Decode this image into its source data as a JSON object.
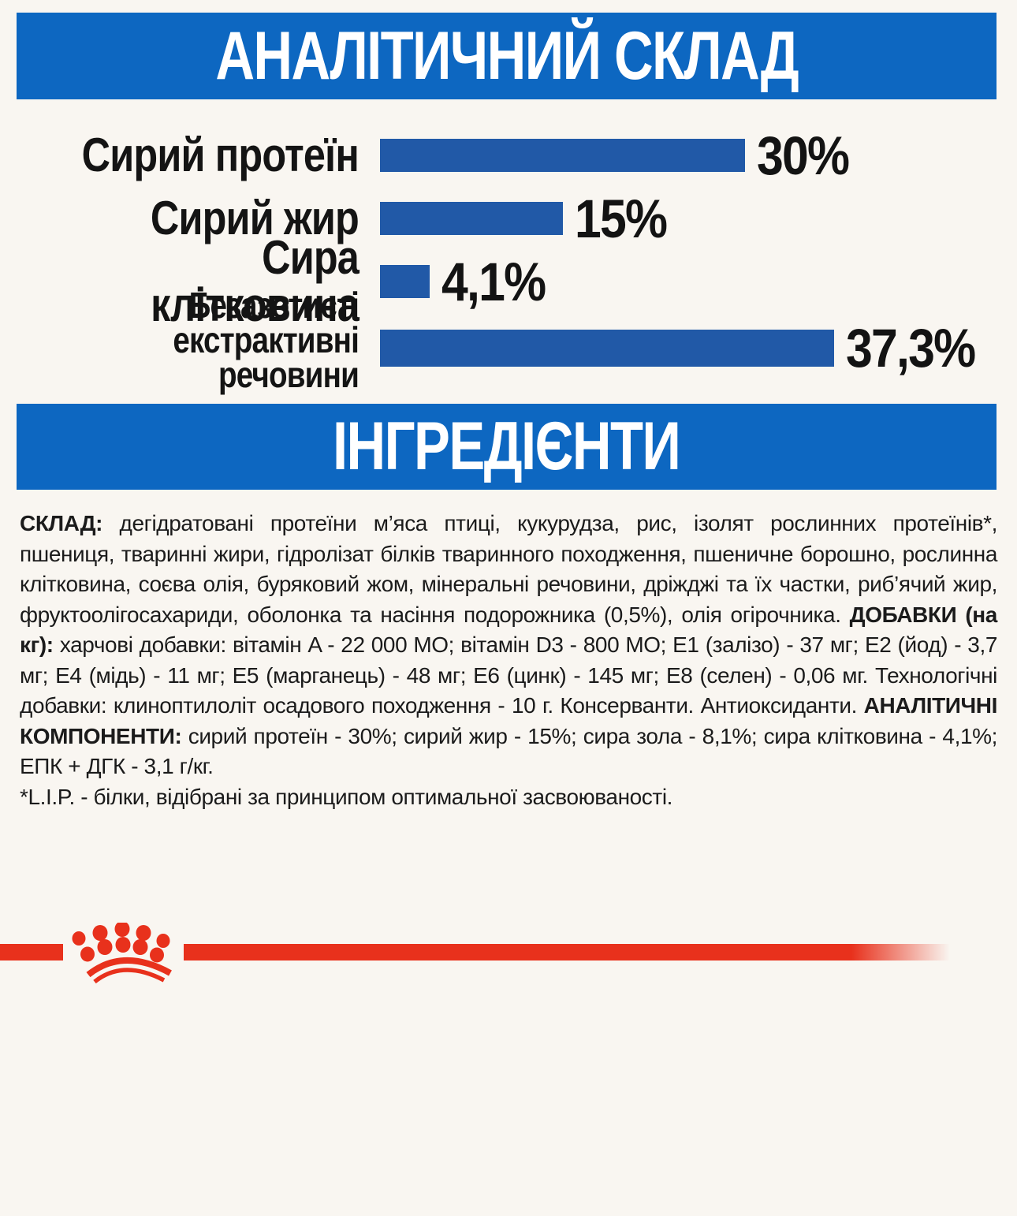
{
  "colors": {
    "banner_blue": "#0d67c1",
    "bar_blue": "#2159a7",
    "accent_red": "#e8311c",
    "text_black": "#1b1b1b",
    "background": "#f9f6f1"
  },
  "analytical": {
    "heading": "АНАЛІТИЧНИЙ СКЛАД",
    "rows": [
      {
        "label_lines": [
          "Сирий протеїн"
        ],
        "value": 30,
        "display": "30%"
      },
      {
        "label_lines": [
          "Сирий жир"
        ],
        "value": 15,
        "display": "15%"
      },
      {
        "label_lines": [
          "Сира клітковина"
        ],
        "value": 4.1,
        "display": "4,1%"
      },
      {
        "label_lines": [
          "Безазотисті",
          "екстрактивні речовини"
        ],
        "value": 37.3,
        "display": "37,3%"
      }
    ]
  },
  "chart_data": {
    "type": "bar",
    "orientation": "horizontal",
    "title": "АНАЛІТИЧНИЙ СКЛАД",
    "categories": [
      "Сирий протеїн",
      "Сирий жир",
      "Сира клітковина",
      "Безазотисті екстрактивні речовини"
    ],
    "values": [
      30,
      15,
      4.1,
      37.3
    ],
    "value_labels": [
      "30%",
      "15%",
      "4,1%",
      "37,3%"
    ],
    "xlabel": "",
    "ylabel": "",
    "xlim": [
      0,
      40
    ],
    "grid": false,
    "legend": false,
    "bar_color": "#2159a7"
  },
  "ingredients": {
    "heading": "ІНГРЕДІЄНТИ",
    "paragraph": [
      {
        "bold": true,
        "text": "СКЛАД: "
      },
      {
        "bold": false,
        "text": "дегідратовані протеїни м’яса птиці, кукурудза, рис, ізолят рослинних протеїнів*, пшениця, тваринні жири, гідролізат білків тваринного походження, пшеничне борошно, рослинна клітковина, соєва олія, буряковий жом, мінеральні речовини, дріжджі та їх частки, риб’ячий жир, фруктоолігосахариди, оболонка та насіння подорожника (0,5%), олія огірочника. "
      },
      {
        "bold": true,
        "text": "ДОБАВКИ (на кг): "
      },
      {
        "bold": false,
        "text": "харчові добавки: вітамін A - 22 000 МО; вітамін D3 - 800 МО; E1 (залізо) - 37 мг; E2 (йод) - 3,7 мг; E4 (мідь) - 11 мг; E5 (марганець) - 48 мг; E6 (цинк) - 145 мг; E8 (селен) - 0,06 мг. Технологічні добавки: клиноптилоліт осадового походження - 10 г. Консерванти. Антиоксиданти. "
      },
      {
        "bold": true,
        "text": "АНАЛІТИЧНІ КОМПОНЕНТИ: "
      },
      {
        "bold": false,
        "text": "сирий протеїн - 30%; сирий жир - 15%; сира зола - 8,1%; сира клітковина - 4,1%; ЕПК + ДГК - 3,1 г/кг."
      }
    ],
    "footnote": "*L.I.P. - білки, відібрані за принципом оптимальної засвоюваності."
  },
  "footer": {
    "logo": "royal-canin-crown-logo"
  }
}
